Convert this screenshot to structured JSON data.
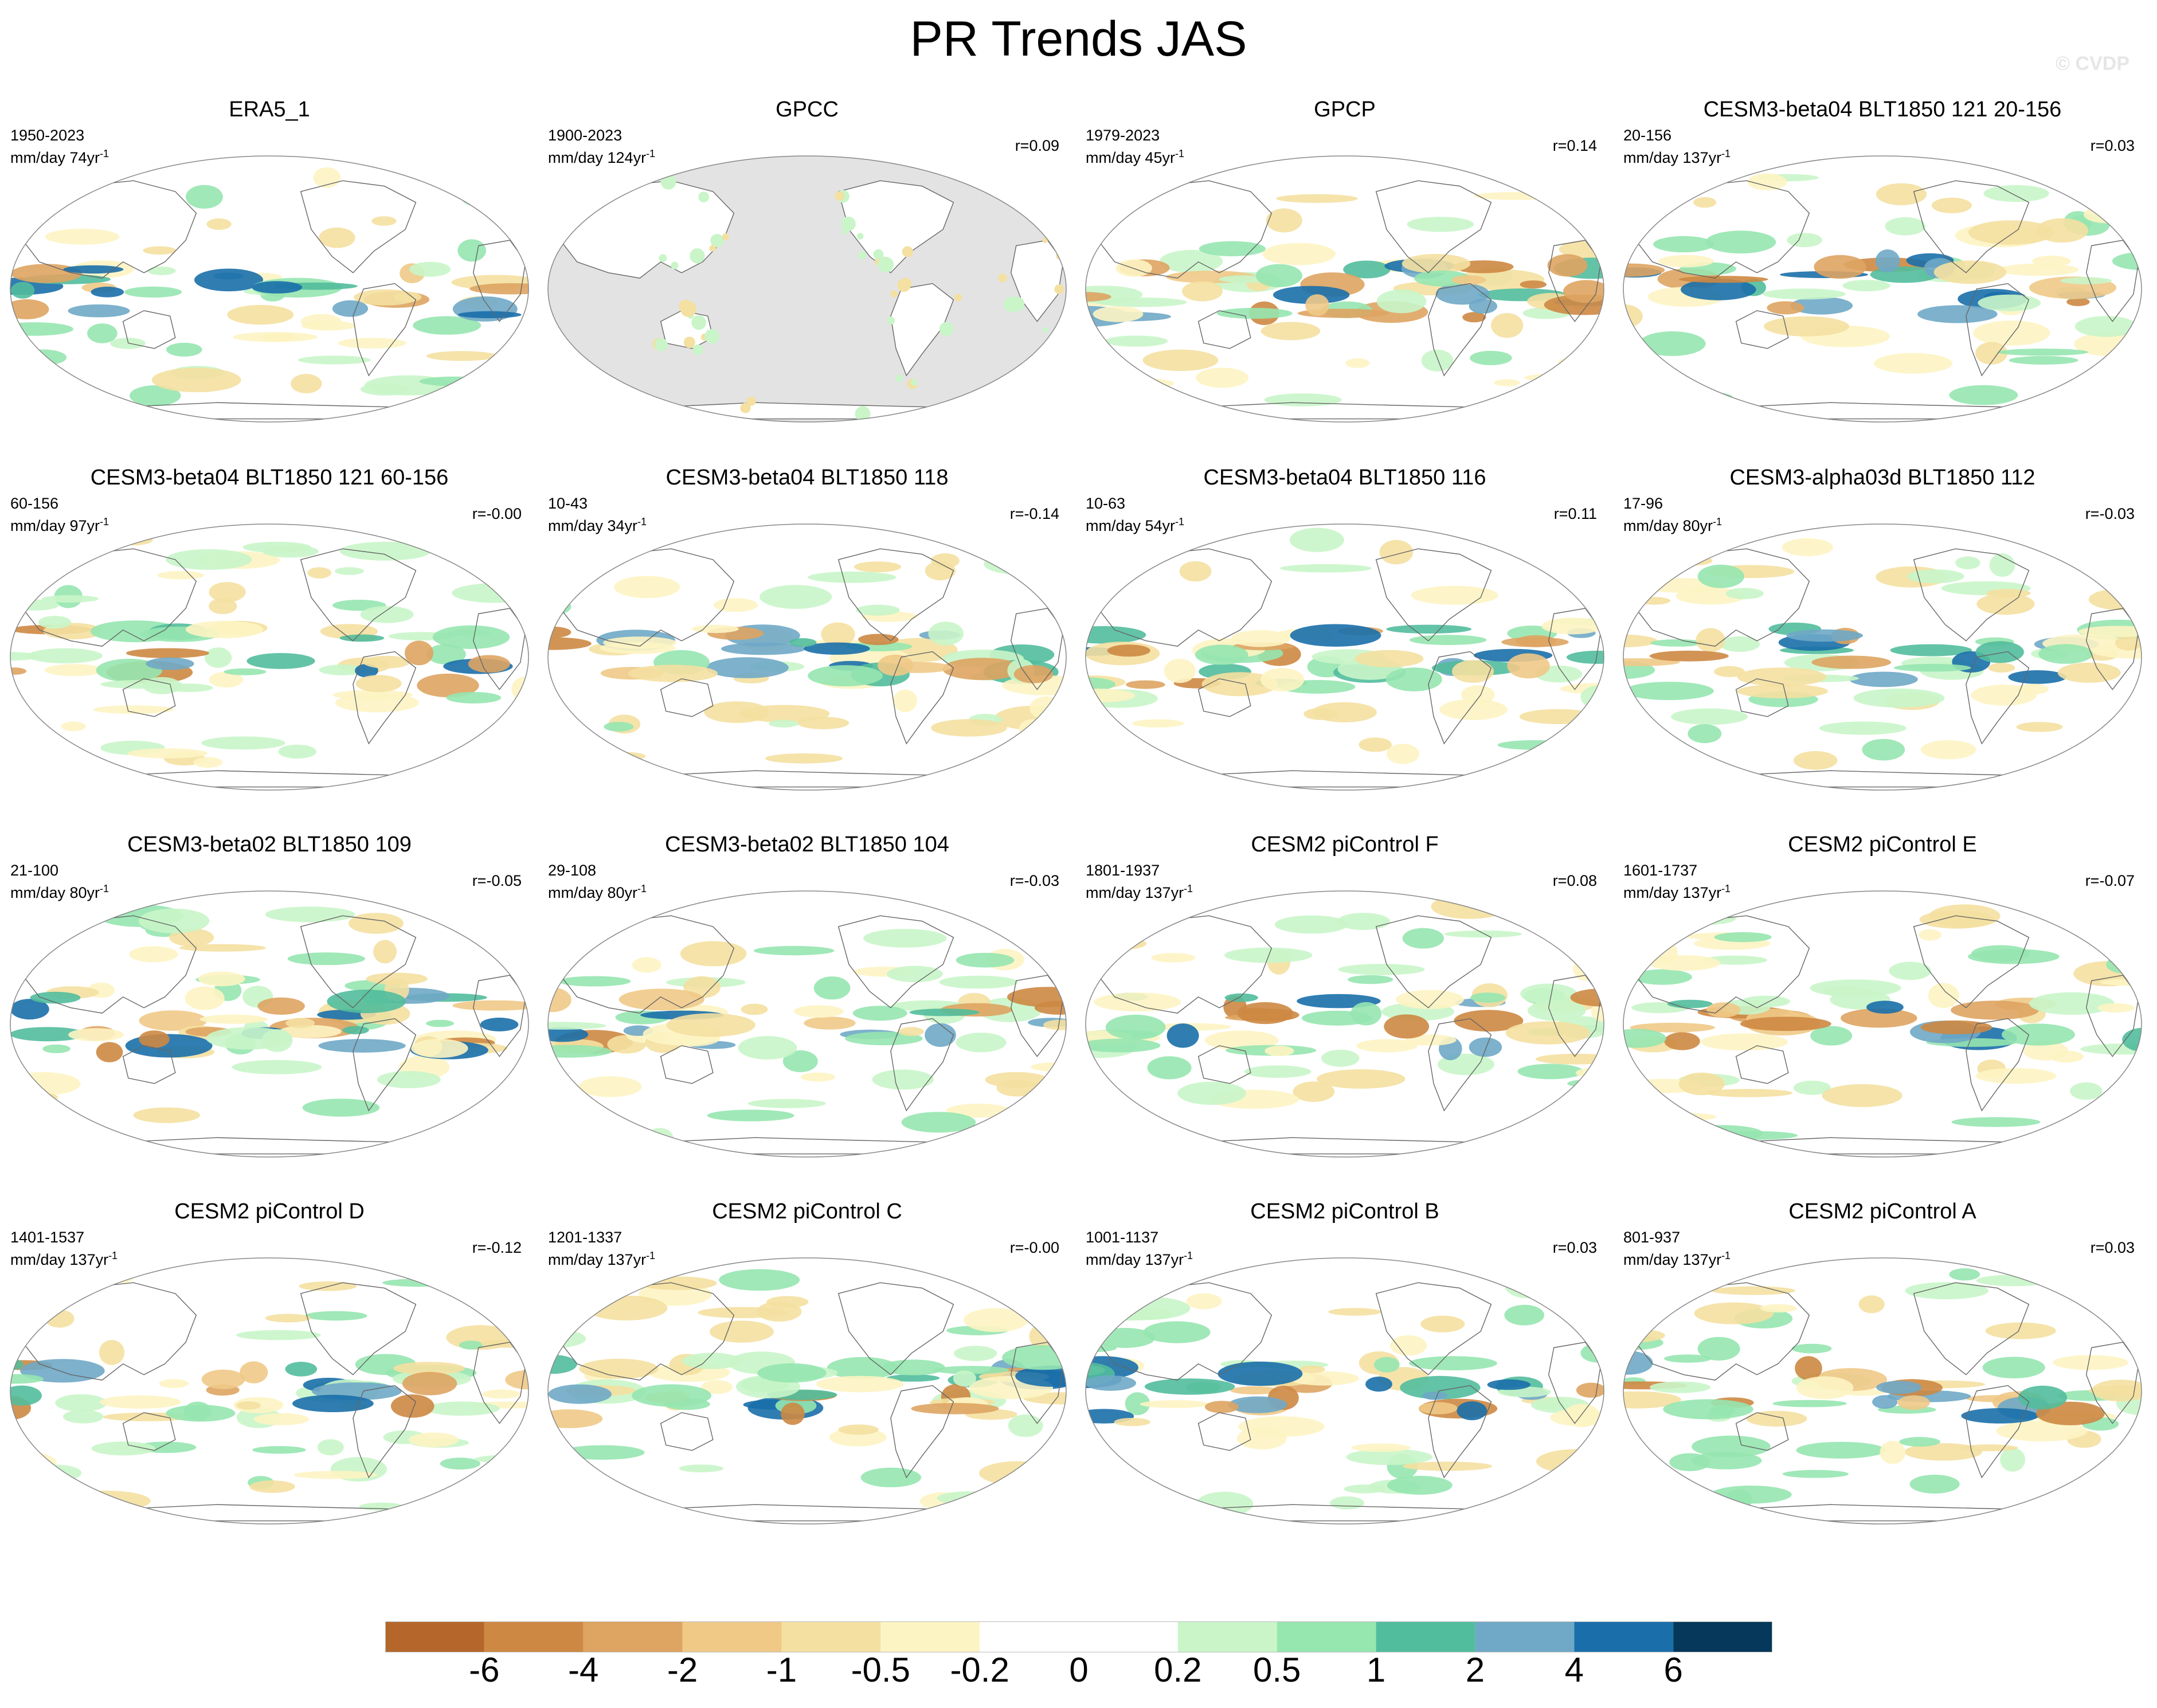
{
  "title": "PR Trends JAS",
  "watermark": "© CVDP",
  "panels": [
    {
      "title": "ERA5_1",
      "range": "1950-2023",
      "units": "mm/day 74yr",
      "units_sup": "-1",
      "corr": "",
      "land_masked": false
    },
    {
      "title": "GPCC",
      "range": "1900-2023",
      "units": "mm/day 124yr",
      "units_sup": "-1",
      "corr": "r=0.09",
      "land_masked": true
    },
    {
      "title": "GPCP",
      "range": "1979-2023",
      "units": "mm/day 45yr",
      "units_sup": "-1",
      "corr": "r=0.14",
      "land_masked": false
    },
    {
      "title": "CESM3-beta04 BLT1850 121 20-156",
      "range": "20-156",
      "units": "mm/day 137yr",
      "units_sup": "-1",
      "corr": "r=0.03",
      "land_masked": false
    },
    {
      "title": "CESM3-beta04 BLT1850 121 60-156",
      "range": "60-156",
      "units": "mm/day 97yr",
      "units_sup": "-1",
      "corr": "r=-0.00",
      "land_masked": false
    },
    {
      "title": "CESM3-beta04 BLT1850 118",
      "range": "10-43",
      "units": "mm/day 34yr",
      "units_sup": "-1",
      "corr": "r=-0.14",
      "land_masked": false
    },
    {
      "title": "CESM3-beta04 BLT1850 116",
      "range": "10-63",
      "units": "mm/day 54yr",
      "units_sup": "-1",
      "corr": "r=0.11",
      "land_masked": false
    },
    {
      "title": "CESM3-alpha03d BLT1850 112",
      "range": "17-96",
      "units": "mm/day 80yr",
      "units_sup": "-1",
      "corr": "r=-0.03",
      "land_masked": false
    },
    {
      "title": "CESM3-beta02 BLT1850 109",
      "range": "21-100",
      "units": "mm/day 80yr",
      "units_sup": "-1",
      "corr": "r=-0.05",
      "land_masked": false
    },
    {
      "title": "CESM3-beta02 BLT1850 104",
      "range": "29-108",
      "units": "mm/day 80yr",
      "units_sup": "-1",
      "corr": "r=-0.03",
      "land_masked": false
    },
    {
      "title": "CESM2 piControl F",
      "range": "1801-1937",
      "units": "mm/day 137yr",
      "units_sup": "-1",
      "corr": "r=0.08",
      "land_masked": false
    },
    {
      "title": "CESM2 piControl E",
      "range": "1601-1737",
      "units": "mm/day 137yr",
      "units_sup": "-1",
      "corr": "r=-0.07",
      "land_masked": false
    },
    {
      "title": "CESM2 piControl D",
      "range": "1401-1537",
      "units": "mm/day 137yr",
      "units_sup": "-1",
      "corr": "r=-0.12",
      "land_masked": false
    },
    {
      "title": "CESM2 piControl C",
      "range": "1201-1337",
      "units": "mm/day 137yr",
      "units_sup": "-1",
      "corr": "r=-0.00",
      "land_masked": false
    },
    {
      "title": "CESM2 piControl B",
      "range": "1001-1137",
      "units": "mm/day 137yr",
      "units_sup": "-1",
      "corr": "r=0.03",
      "land_masked": false
    },
    {
      "title": "CESM2 piControl A",
      "range": "801-937",
      "units": "mm/day 137yr",
      "units_sup": "-1",
      "corr": "r=0.03",
      "land_masked": false
    }
  ],
  "colorbar": {
    "colors": [
      "#b5672b",
      "#cd8843",
      "#dea462",
      "#f0c987",
      "#f4e0a1",
      "#fdf4c3",
      "#ffffff",
      "#ffffff",
      "#c9f5c9",
      "#96e6b0",
      "#52bd9c",
      "#6fa9c7",
      "#1a6faa",
      "#05385a"
    ],
    "labels": [
      "-6",
      "-4",
      "-2",
      "-1",
      "-0.5",
      "-0.2",
      "0",
      "0.2",
      "0.5",
      "1",
      "2",
      "4",
      "6"
    ]
  }
}
